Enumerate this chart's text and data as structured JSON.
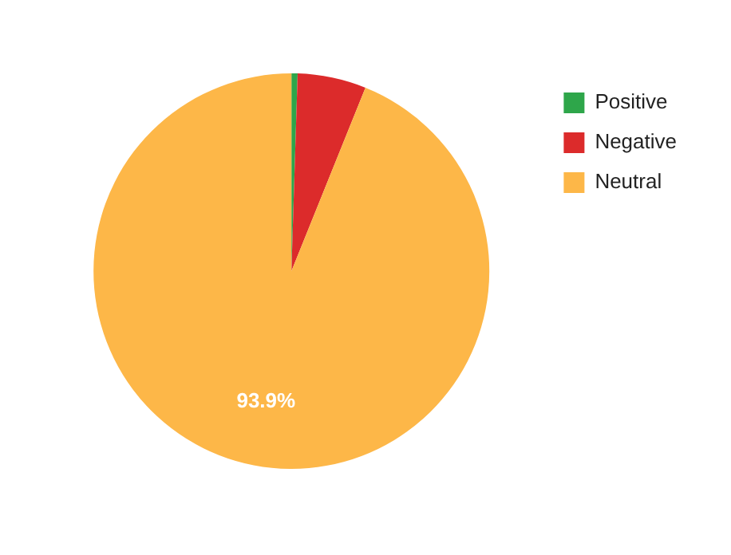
{
  "chart_data": {
    "type": "pie",
    "categories": [
      "Positive",
      "Negative",
      "Neutral"
    ],
    "values": [
      0.5,
      5.6,
      93.9
    ],
    "colors": [
      "#2ea64a",
      "#dc2b2b",
      "#fdb748"
    ],
    "value_labels": [
      null,
      null,
      "93.9%"
    ],
    "legend": "top right"
  }
}
